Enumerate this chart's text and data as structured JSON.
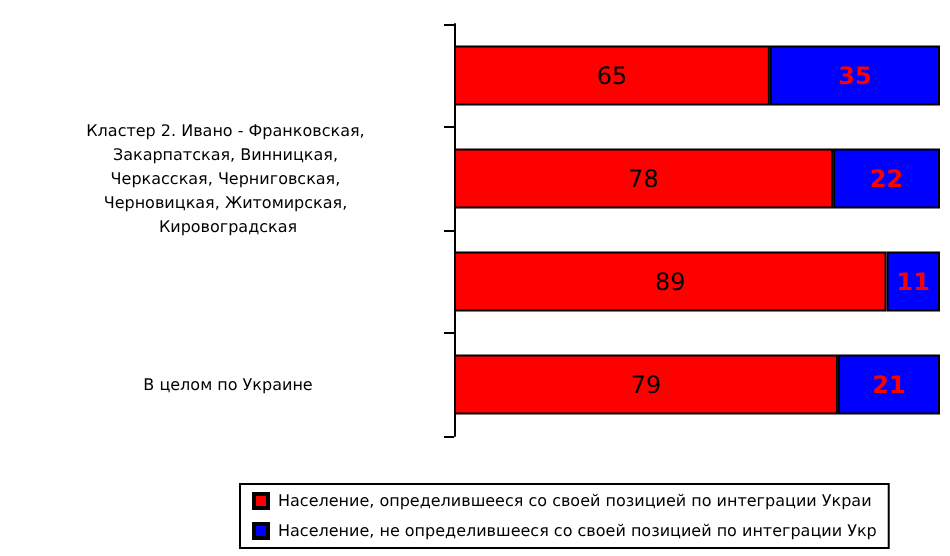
{
  "chart_data": {
    "type": "bar",
    "orientation": "horizontal",
    "stacked": true,
    "data_labels": true,
    "legend": "bottom",
    "categories": [
      null,
      "Кластер 2. Ивано - Франковская, Закарпатская, Винницкая, Черкасская, Черниговская, Черновицкая, Житомирская, Кировоградская",
      null,
      "В целом по Украине"
    ],
    "series": [
      {
        "name": "Население, определившееся со своей позицией по интеграции Украи",
        "color": "#ff0000",
        "values": [
          65,
          78,
          89,
          79
        ]
      },
      {
        "name": "Население, не определившееся со своей позицией по интеграции Укр",
        "color": "#0000ff",
        "values": [
          35,
          22,
          11,
          21
        ]
      }
    ]
  }
}
